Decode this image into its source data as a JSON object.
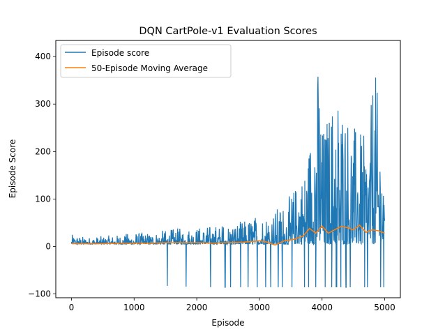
{
  "chart_data": {
    "type": "line",
    "title": "DQN CartPole-v1 Evaluation Scores",
    "xlabel": "Episode",
    "ylabel": "Episode Score",
    "xlim": [
      -250,
      5250
    ],
    "ylim": [
      -108,
      434
    ],
    "xticks": [
      0,
      1000,
      2000,
      3000,
      4000,
      5000
    ],
    "yticks": [
      -100,
      0,
      100,
      200,
      300,
      400
    ],
    "grid": false,
    "legend_position": "top-left",
    "series": [
      {
        "name": "Episode score",
        "color": "#1f77b4",
        "description_points": {
          "x": [
            0,
            250,
            500,
            750,
            1000,
            1250,
            1500,
            1750,
            2000,
            2250,
            2500,
            2750,
            3000,
            3250,
            3500,
            3750,
            3950,
            4000,
            4250,
            4500,
            4750,
            4830,
            5000
          ],
          "y_low": [
            5,
            5,
            5,
            5,
            5,
            5,
            5,
            5,
            5,
            5,
            5,
            5,
            5,
            5,
            5,
            5,
            5,
            5,
            5,
            5,
            5,
            5,
            5
          ],
          "y_high": [
            25,
            20,
            22,
            25,
            30,
            30,
            35,
            40,
            42,
            45,
            50,
            55,
            70,
            80,
            110,
            170,
            400,
            250,
            340,
            260,
            220,
            406,
            140
          ]
        },
        "negative_spikes": {
          "x": [
            1530,
            1830,
            2220,
            2540,
            2820,
            3100,
            3300,
            3520,
            3720,
            3900,
            4050,
            4300,
            4450
          ],
          "y": [
            -83,
            -85,
            -86,
            -86,
            -86,
            -86,
            -86,
            -86,
            -86,
            -86,
            -86,
            -86,
            -86
          ]
        }
      },
      {
        "name": "50-Episode Moving Average",
        "color": "#ff7f0e",
        "x": [
          0,
          250,
          500,
          750,
          1000,
          1250,
          1500,
          1750,
          2000,
          2250,
          2500,
          2750,
          3000,
          3100,
          3250,
          3400,
          3550,
          3700,
          3800,
          3900,
          4000,
          4100,
          4200,
          4300,
          4400,
          4500,
          4600,
          4700,
          4800,
          4900,
          5000
        ],
        "y": [
          6,
          6,
          6,
          7,
          7,
          7,
          8,
          8,
          8,
          7,
          8,
          9,
          12,
          10,
          3,
          12,
          15,
          22,
          38,
          28,
          43,
          28,
          35,
          42,
          40,
          35,
          45,
          30,
          35,
          33,
          28
        ]
      }
    ]
  }
}
